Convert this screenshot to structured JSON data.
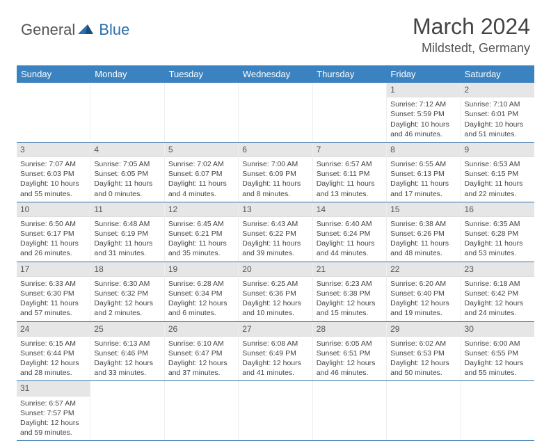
{
  "logo": {
    "general": "General",
    "blue": "Blue"
  },
  "title": "March 2024",
  "location": "Mildstedt, Germany",
  "colors": {
    "header_bg": "#3b83c0",
    "header_text": "#ffffff",
    "daynum_bg": "#e6e6e6",
    "border": "#2b6fab",
    "text": "#444444"
  },
  "day_headers": [
    "Sunday",
    "Monday",
    "Tuesday",
    "Wednesday",
    "Thursday",
    "Friday",
    "Saturday"
  ],
  "weeks": [
    [
      null,
      null,
      null,
      null,
      null,
      {
        "n": "1",
        "sr": "Sunrise: 7:12 AM",
        "ss": "Sunset: 5:59 PM",
        "dl1": "Daylight: 10 hours",
        "dl2": "and 46 minutes."
      },
      {
        "n": "2",
        "sr": "Sunrise: 7:10 AM",
        "ss": "Sunset: 6:01 PM",
        "dl1": "Daylight: 10 hours",
        "dl2": "and 51 minutes."
      }
    ],
    [
      {
        "n": "3",
        "sr": "Sunrise: 7:07 AM",
        "ss": "Sunset: 6:03 PM",
        "dl1": "Daylight: 10 hours",
        "dl2": "and 55 minutes."
      },
      {
        "n": "4",
        "sr": "Sunrise: 7:05 AM",
        "ss": "Sunset: 6:05 PM",
        "dl1": "Daylight: 11 hours",
        "dl2": "and 0 minutes."
      },
      {
        "n": "5",
        "sr": "Sunrise: 7:02 AM",
        "ss": "Sunset: 6:07 PM",
        "dl1": "Daylight: 11 hours",
        "dl2": "and 4 minutes."
      },
      {
        "n": "6",
        "sr": "Sunrise: 7:00 AM",
        "ss": "Sunset: 6:09 PM",
        "dl1": "Daylight: 11 hours",
        "dl2": "and 8 minutes."
      },
      {
        "n": "7",
        "sr": "Sunrise: 6:57 AM",
        "ss": "Sunset: 6:11 PM",
        "dl1": "Daylight: 11 hours",
        "dl2": "and 13 minutes."
      },
      {
        "n": "8",
        "sr": "Sunrise: 6:55 AM",
        "ss": "Sunset: 6:13 PM",
        "dl1": "Daylight: 11 hours",
        "dl2": "and 17 minutes."
      },
      {
        "n": "9",
        "sr": "Sunrise: 6:53 AM",
        "ss": "Sunset: 6:15 PM",
        "dl1": "Daylight: 11 hours",
        "dl2": "and 22 minutes."
      }
    ],
    [
      {
        "n": "10",
        "sr": "Sunrise: 6:50 AM",
        "ss": "Sunset: 6:17 PM",
        "dl1": "Daylight: 11 hours",
        "dl2": "and 26 minutes."
      },
      {
        "n": "11",
        "sr": "Sunrise: 6:48 AM",
        "ss": "Sunset: 6:19 PM",
        "dl1": "Daylight: 11 hours",
        "dl2": "and 31 minutes."
      },
      {
        "n": "12",
        "sr": "Sunrise: 6:45 AM",
        "ss": "Sunset: 6:21 PM",
        "dl1": "Daylight: 11 hours",
        "dl2": "and 35 minutes."
      },
      {
        "n": "13",
        "sr": "Sunrise: 6:43 AM",
        "ss": "Sunset: 6:22 PM",
        "dl1": "Daylight: 11 hours",
        "dl2": "and 39 minutes."
      },
      {
        "n": "14",
        "sr": "Sunrise: 6:40 AM",
        "ss": "Sunset: 6:24 PM",
        "dl1": "Daylight: 11 hours",
        "dl2": "and 44 minutes."
      },
      {
        "n": "15",
        "sr": "Sunrise: 6:38 AM",
        "ss": "Sunset: 6:26 PM",
        "dl1": "Daylight: 11 hours",
        "dl2": "and 48 minutes."
      },
      {
        "n": "16",
        "sr": "Sunrise: 6:35 AM",
        "ss": "Sunset: 6:28 PM",
        "dl1": "Daylight: 11 hours",
        "dl2": "and 53 minutes."
      }
    ],
    [
      {
        "n": "17",
        "sr": "Sunrise: 6:33 AM",
        "ss": "Sunset: 6:30 PM",
        "dl1": "Daylight: 11 hours",
        "dl2": "and 57 minutes."
      },
      {
        "n": "18",
        "sr": "Sunrise: 6:30 AM",
        "ss": "Sunset: 6:32 PM",
        "dl1": "Daylight: 12 hours",
        "dl2": "and 2 minutes."
      },
      {
        "n": "19",
        "sr": "Sunrise: 6:28 AM",
        "ss": "Sunset: 6:34 PM",
        "dl1": "Daylight: 12 hours",
        "dl2": "and 6 minutes."
      },
      {
        "n": "20",
        "sr": "Sunrise: 6:25 AM",
        "ss": "Sunset: 6:36 PM",
        "dl1": "Daylight: 12 hours",
        "dl2": "and 10 minutes."
      },
      {
        "n": "21",
        "sr": "Sunrise: 6:23 AM",
        "ss": "Sunset: 6:38 PM",
        "dl1": "Daylight: 12 hours",
        "dl2": "and 15 minutes."
      },
      {
        "n": "22",
        "sr": "Sunrise: 6:20 AM",
        "ss": "Sunset: 6:40 PM",
        "dl1": "Daylight: 12 hours",
        "dl2": "and 19 minutes."
      },
      {
        "n": "23",
        "sr": "Sunrise: 6:18 AM",
        "ss": "Sunset: 6:42 PM",
        "dl1": "Daylight: 12 hours",
        "dl2": "and 24 minutes."
      }
    ],
    [
      {
        "n": "24",
        "sr": "Sunrise: 6:15 AM",
        "ss": "Sunset: 6:44 PM",
        "dl1": "Daylight: 12 hours",
        "dl2": "and 28 minutes."
      },
      {
        "n": "25",
        "sr": "Sunrise: 6:13 AM",
        "ss": "Sunset: 6:46 PM",
        "dl1": "Daylight: 12 hours",
        "dl2": "and 33 minutes."
      },
      {
        "n": "26",
        "sr": "Sunrise: 6:10 AM",
        "ss": "Sunset: 6:47 PM",
        "dl1": "Daylight: 12 hours",
        "dl2": "and 37 minutes."
      },
      {
        "n": "27",
        "sr": "Sunrise: 6:08 AM",
        "ss": "Sunset: 6:49 PM",
        "dl1": "Daylight: 12 hours",
        "dl2": "and 41 minutes."
      },
      {
        "n": "28",
        "sr": "Sunrise: 6:05 AM",
        "ss": "Sunset: 6:51 PM",
        "dl1": "Daylight: 12 hours",
        "dl2": "and 46 minutes."
      },
      {
        "n": "29",
        "sr": "Sunrise: 6:02 AM",
        "ss": "Sunset: 6:53 PM",
        "dl1": "Daylight: 12 hours",
        "dl2": "and 50 minutes."
      },
      {
        "n": "30",
        "sr": "Sunrise: 6:00 AM",
        "ss": "Sunset: 6:55 PM",
        "dl1": "Daylight: 12 hours",
        "dl2": "and 55 minutes."
      }
    ],
    [
      {
        "n": "31",
        "sr": "Sunrise: 6:57 AM",
        "ss": "Sunset: 7:57 PM",
        "dl1": "Daylight: 12 hours",
        "dl2": "and 59 minutes."
      },
      null,
      null,
      null,
      null,
      null,
      null
    ]
  ]
}
